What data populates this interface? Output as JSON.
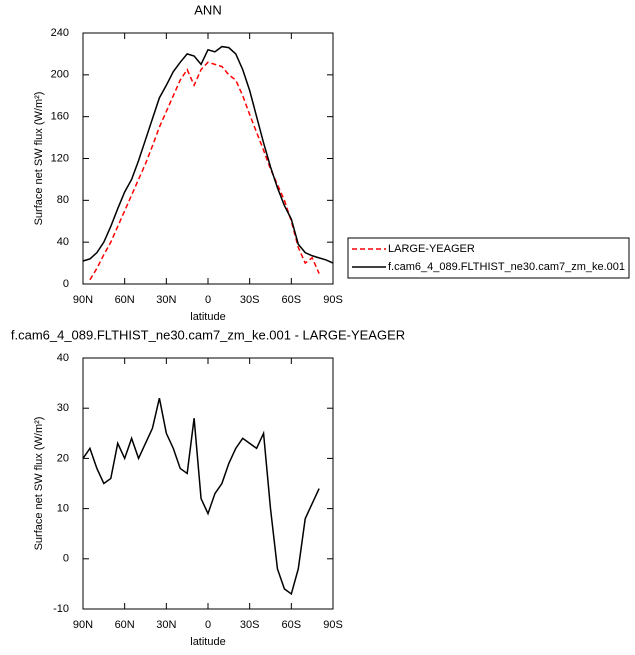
{
  "chart_data": [
    {
      "type": "line",
      "title": "ANN",
      "xlabel": "latitude",
      "ylabel": "Surface net SW flux (W/m²)",
      "x": [
        90,
        85,
        80,
        75,
        70,
        65,
        60,
        55,
        50,
        45,
        40,
        35,
        30,
        25,
        20,
        15,
        10,
        5,
        0,
        -5,
        -10,
        -15,
        -20,
        -25,
        -30,
        -35,
        -40,
        -45,
        -50,
        -55,
        -60,
        -65,
        -70,
        -75,
        -80,
        -85,
        -90
      ],
      "series": [
        {
          "name": "LARGE-YEAGER",
          "color": "#ff0000",
          "style": "dashed",
          "values": [
            null,
            4,
            15,
            28,
            40,
            55,
            70,
            85,
            100,
            115,
            132,
            150,
            165,
            180,
            195,
            205,
            190,
            205,
            212,
            210,
            208,
            200,
            195,
            180,
            162,
            145,
            128,
            110,
            95,
            80,
            60,
            35,
            20,
            25,
            10,
            null,
            null
          ]
        },
        {
          "name": "f.cam6_4_089.FLTHIST_ne30.cam7_zm_ke.001",
          "color": "#000000",
          "style": "solid",
          "values": [
            22,
            24,
            30,
            40,
            55,
            72,
            88,
            100,
            118,
            138,
            158,
            178,
            190,
            203,
            212,
            220,
            218,
            210,
            224,
            222,
            227,
            226,
            220,
            205,
            185,
            160,
            135,
            112,
            92,
            75,
            62,
            38,
            30,
            27,
            25,
            23,
            20
          ]
        }
      ],
      "xlim": [
        90,
        -90
      ],
      "xticks": [
        {
          "value": 90,
          "label": "90N"
        },
        {
          "value": 60,
          "label": "60N"
        },
        {
          "value": 30,
          "label": "30N"
        },
        0,
        {
          "value": -30,
          "label": "30S"
        },
        {
          "value": -60,
          "label": "60S"
        },
        {
          "value": -90,
          "label": "90S"
        }
      ],
      "ylim": [
        0,
        240
      ],
      "yticks": [
        0,
        40,
        80,
        120,
        160,
        200,
        240
      ],
      "legend": "outside-right"
    },
    {
      "type": "line",
      "title": "f.cam6_4_089.FLTHIST_ne30.cam7_zm_ke.001 - LARGE-YEAGER",
      "xlabel": "latitude",
      "ylabel": "Surface net SW flux (W/m²)",
      "x": [
        90,
        85,
        80,
        75,
        70,
        65,
        60,
        55,
        50,
        45,
        40,
        35,
        30,
        25,
        20,
        15,
        10,
        5,
        0,
        -5,
        -10,
        -15,
        -20,
        -25,
        -30,
        -35,
        -40,
        -45,
        -50,
        -55,
        -60,
        -65,
        -70,
        -75,
        -80
      ],
      "series": [
        {
          "color": "#000000",
          "style": "solid",
          "values": [
            20,
            22,
            18,
            15,
            16,
            23,
            20,
            24,
            20,
            23,
            26,
            32,
            25,
            22,
            18,
            17,
            28,
            12,
            9,
            13,
            15,
            19,
            22,
            24,
            23,
            22,
            25,
            10,
            -2,
            -6,
            -7,
            -2,
            8,
            11,
            14
          ]
        }
      ],
      "xlim": [
        90,
        -90
      ],
      "xticks": [
        {
          "value": 90,
          "label": "90N"
        },
        {
          "value": 60,
          "label": "60N"
        },
        {
          "value": 30,
          "label": "30N"
        },
        0,
        {
          "value": -30,
          "label": "30S"
        },
        {
          "value": -60,
          "label": "60S"
        },
        {
          "value": -90,
          "label": "90S"
        }
      ],
      "ylim": [
        -10,
        40
      ],
      "yticks": [
        -10,
        0,
        10,
        20,
        30,
        40
      ]
    }
  ]
}
